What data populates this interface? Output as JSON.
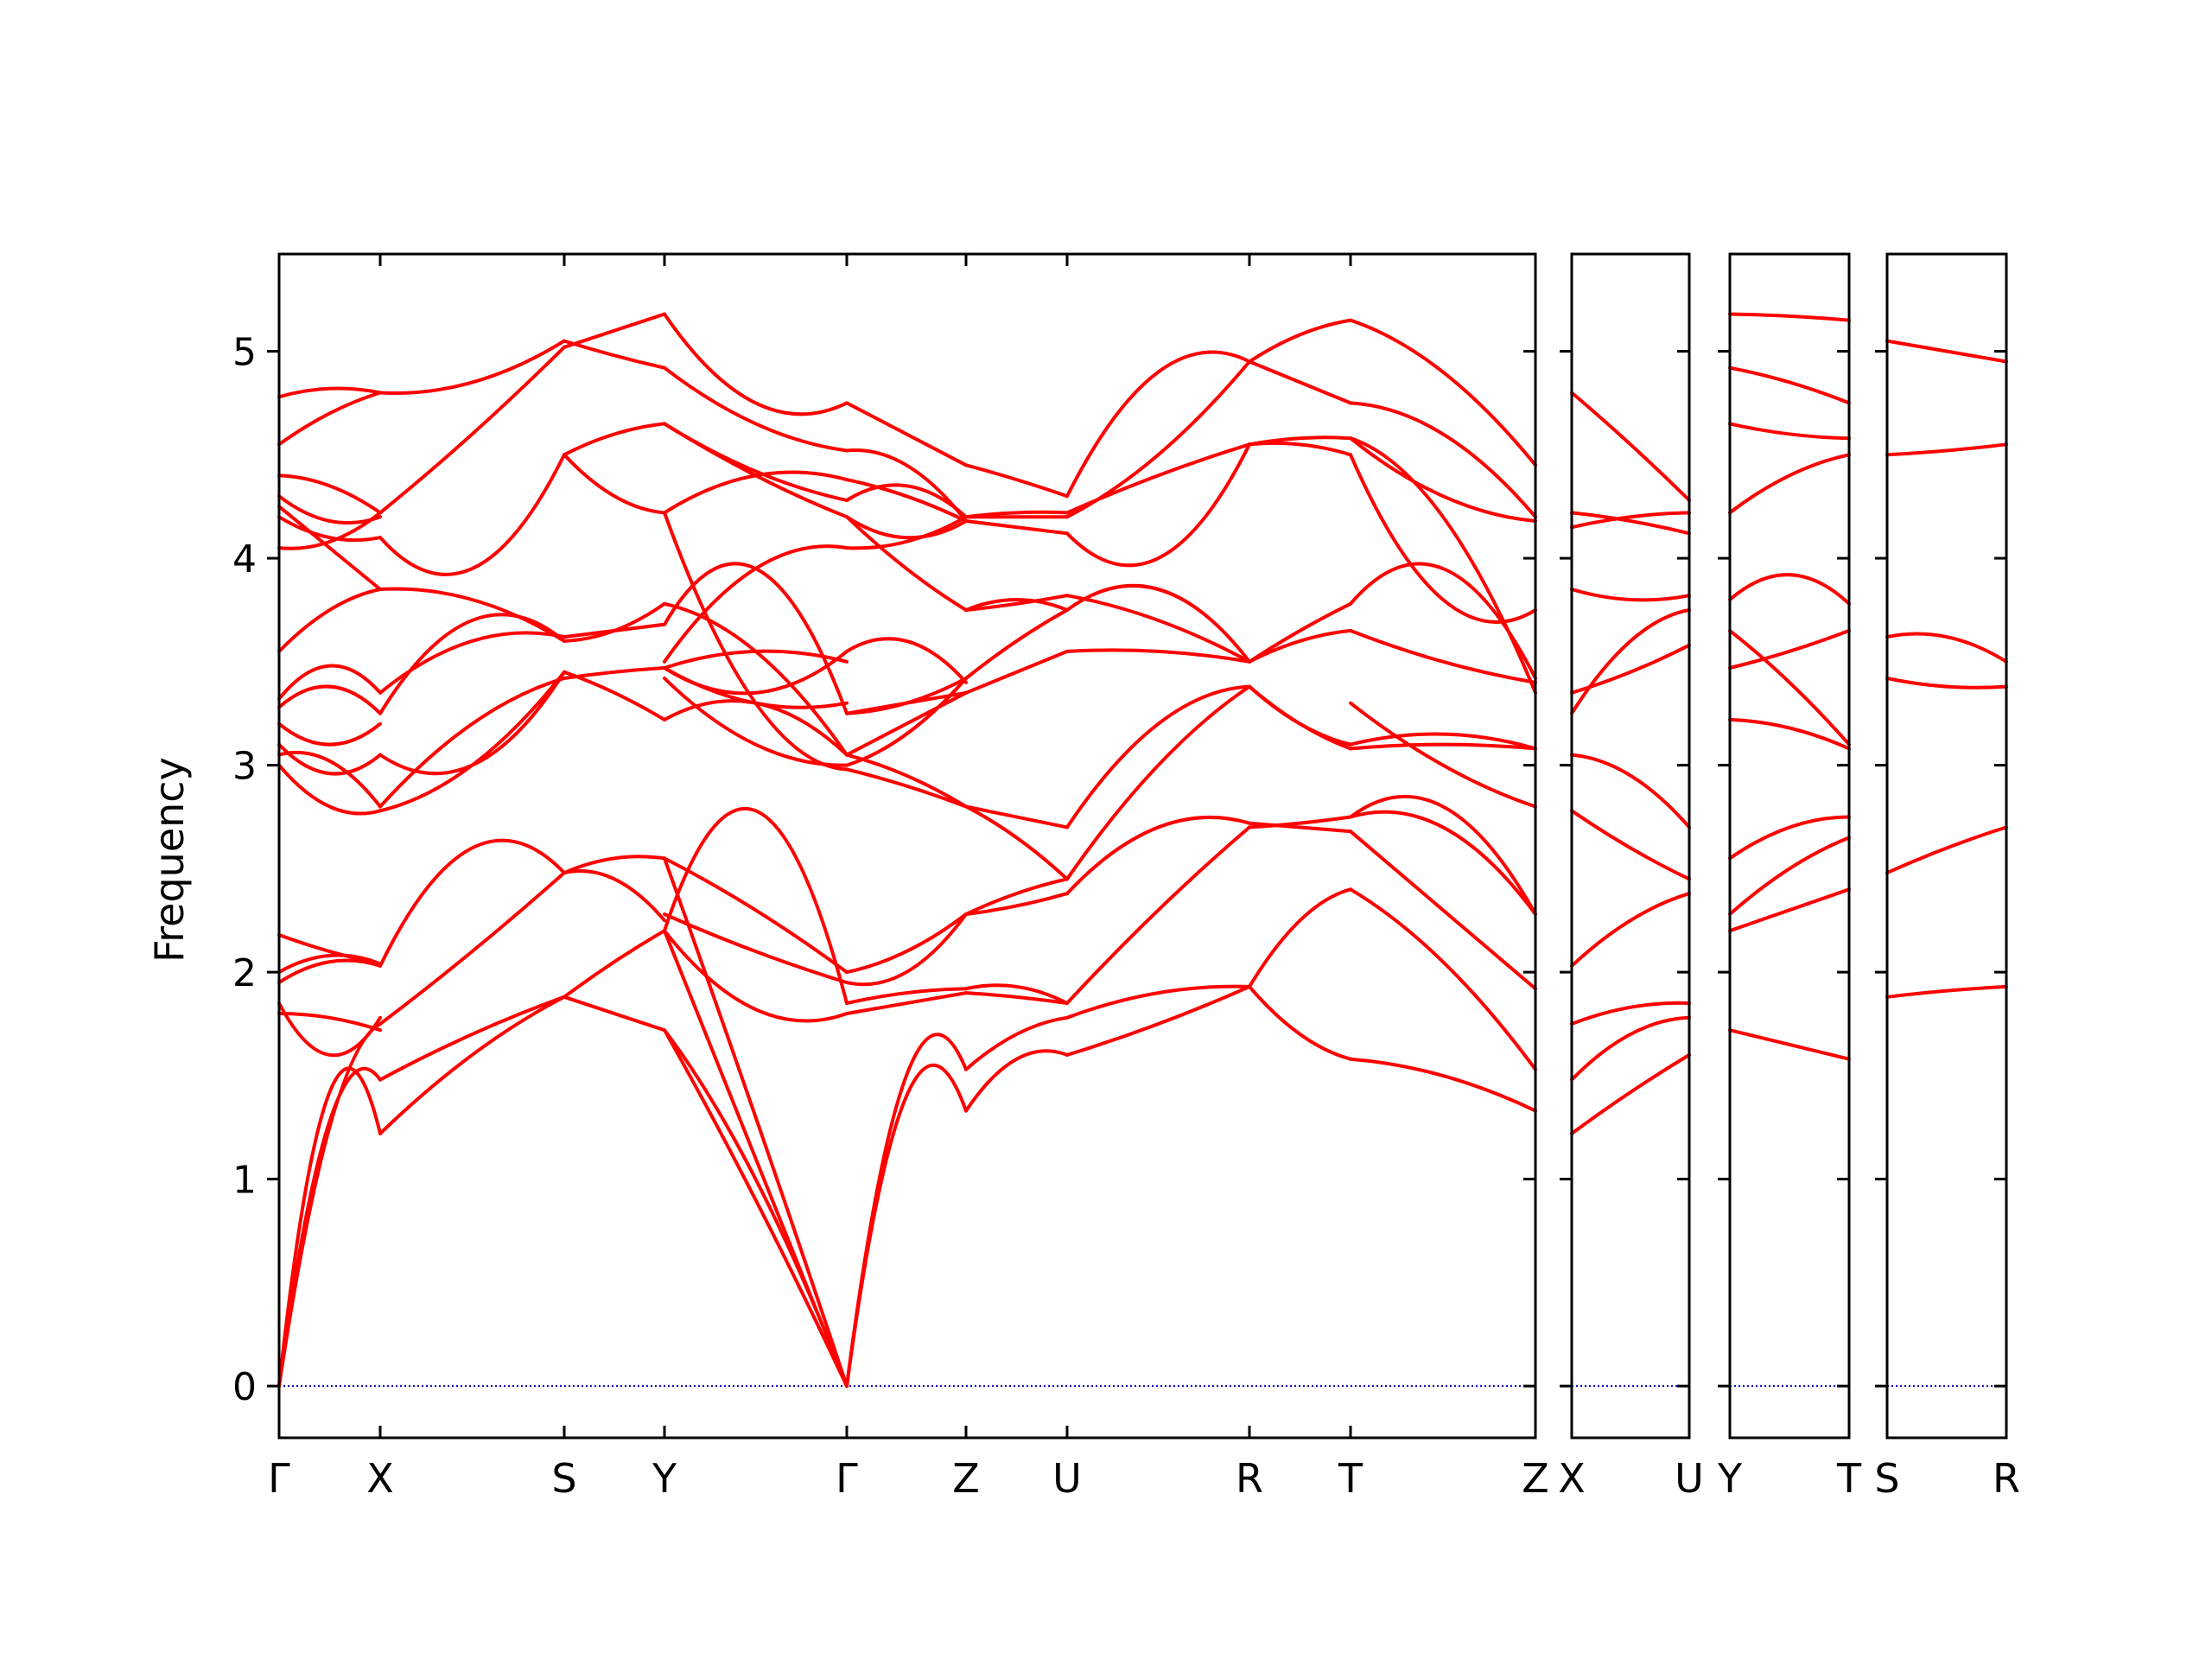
{
  "chart_data": {
    "type": "line",
    "ylabel": "Frequency",
    "ylim": [
      -0.25,
      5.47
    ],
    "yticks": [
      0,
      1,
      2,
      3,
      4,
      5
    ],
    "line_color": "#ff0000",
    "zero_line_color": "#0000cc",
    "panels": [
      {
        "id": "main",
        "labels": [
          "Γ",
          "X",
          "S",
          "Y",
          "Γ",
          "Z",
          "U",
          "R",
          "T",
          "Z"
        ],
        "segments": [
          {
            "from": "Γ",
            "to": "X",
            "bands": [
              [
                0,
                1.42,
                1.22
              ],
              [
                0,
                1.28,
                1.48
              ],
              [
                0,
                1.25,
                1.75
              ],
              [
                1.8,
                1.78,
                1.72
              ],
              [
                1.85,
                1.6,
                1.78
              ],
              [
                1.95,
                2.05,
                2.03
              ],
              [
                2.0,
                2.08,
                2.04
              ],
              [
                2.18,
                2.1,
                2.04
              ],
              [
                3.0,
                2.8,
                2.78
              ],
              [
                3.05,
                3.02,
                2.8
              ],
              [
                3.1,
                2.96,
                3.05
              ],
              [
                3.2,
                3.1,
                3.2
              ],
              [
                3.28,
                3.38,
                3.25
              ],
              [
                3.32,
                3.48,
                3.35
              ],
              [
                3.55,
                3.75,
                3.85
              ],
              [
                4.05,
                4.08,
                4.22
              ],
              [
                4.2,
                4.1,
                4.1
              ],
              [
                4.25,
                4.05,
                3.85
              ],
              [
                4.3,
                4.18,
                4.2
              ],
              [
                4.4,
                4.35,
                4.22
              ],
              [
                4.55,
                4.7,
                4.8
              ],
              [
                4.78,
                4.82,
                4.8
              ]
            ]
          },
          {
            "from": "X",
            "to": "S",
            "bands": [
              [
                1.22,
                1.6,
                1.88
              ],
              [
                1.48,
                1.7,
                1.88
              ],
              [
                1.75,
                2.1,
                2.48
              ],
              [
                2.03,
                2.6,
                2.48
              ],
              [
                2.78,
                3.0,
                3.45
              ],
              [
                2.8,
                3.2,
                3.42
              ],
              [
                3.05,
                3.0,
                3.45
              ],
              [
                3.25,
                3.7,
                3.6
              ],
              [
                3.35,
                3.6,
                3.62
              ],
              [
                3.85,
                3.8,
                3.6
              ],
              [
                4.1,
                3.95,
                4.5
              ],
              [
                4.22,
                4.6,
                5.02
              ],
              [
                4.8,
                4.85,
                5.05
              ]
            ]
          },
          {
            "from": "S",
            "to": "Y",
            "bands": [
              [
                1.88,
                1.8,
                1.72
              ],
              [
                1.88,
                2.05,
                2.2
              ],
              [
                2.48,
                2.45,
                2.25
              ],
              [
                2.48,
                2.55,
                2.55
              ],
              [
                3.42,
                3.45,
                3.47
              ],
              [
                3.45,
                3.35,
                3.22
              ],
              [
                3.6,
                3.65,
                3.78
              ],
              [
                3.62,
                3.65,
                3.68
              ],
              [
                4.5,
                4.3,
                4.22
              ],
              [
                4.5,
                4.6,
                4.65
              ],
              [
                5.02,
                5.1,
                5.18
              ],
              [
                5.05,
                4.98,
                4.92
              ]
            ]
          },
          {
            "from": "Y",
            "to": "Γ",
            "bands": [
              [
                1.72,
                1.0,
                0
              ],
              [
                1.72,
                0.9,
                0
              ],
              [
                2.2,
                1.1,
                0
              ],
              [
                2.55,
                1.3,
                0
              ],
              [
                2.2,
                2.78,
                1.85
              ],
              [
                2.2,
                1.82,
                1.8
              ],
              [
                2.28,
                2.1,
                1.95
              ],
              [
                2.55,
                2.3,
                2.0
              ],
              [
                3.22,
                3.3,
                3.05
              ],
              [
                3.47,
                3.55,
                3.5
              ],
              [
                3.68,
                3.95,
                3.25
              ],
              [
                3.78,
                3.55,
                3.05
              ],
              [
                3.47,
                3.3,
                3.3
              ],
              [
                3.42,
                3.1,
                3.0
              ],
              [
                4.22,
                3.3,
                2.98
              ],
              [
                4.22,
                4.4,
                4.38
              ],
              [
                4.65,
                4.4,
                4.2
              ],
              [
                4.65,
                4.42,
                4.28
              ],
              [
                5.18,
                4.75,
                4.75
              ],
              [
                4.92,
                4.65,
                4.52
              ],
              [
                3.5,
                3.95,
                4.05
              ],
              [
                3.47,
                3.35,
                3.55
              ]
            ]
          },
          {
            "from": "Γ",
            "to": "Z",
            "bands": [
              [
                0,
                1.5,
                1.53
              ],
              [
                0,
                1.4,
                1.33
              ],
              [
                1.85,
                1.9,
                1.92
              ],
              [
                1.8,
                1.85,
                1.9
              ],
              [
                2.0,
                2.1,
                2.28
              ],
              [
                1.95,
                2.0,
                2.28
              ],
              [
                3.05,
                2.95,
                2.8
              ],
              [
                2.98,
                2.9,
                2.8
              ],
              [
                3.25,
                3.3,
                3.42
              ],
              [
                3.55,
                3.6,
                3.4
              ],
              [
                3.25,
                3.3,
                3.35
              ],
              [
                3.05,
                3.2,
                3.35
              ],
              [
                3.0,
                3.15,
                3.42
              ],
              [
                4.05,
                4.08,
                4.2
              ],
              [
                4.28,
                4.35,
                4.2
              ],
              [
                4.38,
                4.3,
                4.18
              ],
              [
                4.52,
                4.45,
                4.18
              ],
              [
                4.75,
                4.6,
                4.45
              ],
              [
                4.2,
                3.95,
                3.75
              ],
              [
                4.2,
                4.1,
                4.18
              ]
            ]
          },
          {
            "from": "Z",
            "to": "U",
            "bands": [
              [
                1.33,
                1.58,
                1.6
              ],
              [
                1.53,
                1.7,
                1.78
              ],
              [
                1.9,
                1.88,
                1.85
              ],
              [
                1.92,
                1.93,
                1.85
              ],
              [
                2.28,
                2.32,
                2.38
              ],
              [
                2.28,
                2.38,
                2.45
              ],
              [
                2.8,
                2.65,
                2.45
              ],
              [
                2.8,
                2.75,
                2.7
              ],
              [
                3.35,
                3.45,
                3.55
              ],
              [
                3.42,
                3.6,
                3.75
              ],
              [
                3.75,
                3.78,
                3.82
              ],
              [
                3.75,
                3.8,
                3.75
              ],
              [
                4.18,
                4.15,
                4.12
              ],
              [
                4.2,
                4.22,
                4.22
              ],
              [
                4.45,
                4.38,
                4.3
              ],
              [
                4.2,
                4.2,
                4.2
              ]
            ]
          },
          {
            "from": "U",
            "to": "R",
            "bands": [
              [
                1.6,
                1.75,
                1.93
              ],
              [
                1.78,
                1.9,
                1.93
              ],
              [
                1.85,
                2.3,
                2.7
              ],
              [
                2.38,
                2.7,
                2.72
              ],
              [
                2.45,
                3.0,
                3.38
              ],
              [
                2.7,
                3.2,
                3.38
              ],
              [
                3.55,
                3.55,
                3.5
              ],
              [
                3.75,
                3.85,
                3.5
              ],
              [
                3.82,
                3.7,
                3.5
              ],
              [
                4.12,
                4.0,
                4.55
              ],
              [
                4.22,
                4.4,
                4.55
              ],
              [
                4.3,
                4.9,
                4.95
              ],
              [
                4.2,
                4.5,
                4.95
              ]
            ]
          },
          {
            "from": "R",
            "to": "T",
            "bands": [
              [
                1.93,
                1.7,
                1.58
              ],
              [
                1.93,
                2.25,
                2.4
              ],
              [
                2.7,
                2.72,
                2.75
              ],
              [
                2.72,
                2.7,
                2.68
              ],
              [
                3.38,
                3.2,
                3.1
              ],
              [
                3.38,
                3.2,
                3.08
              ],
              [
                3.5,
                3.6,
                3.65
              ],
              [
                3.5,
                3.65,
                3.78
              ],
              [
                4.55,
                4.55,
                4.5
              ],
              [
                4.55,
                4.58,
                4.58
              ],
              [
                4.95,
                5.08,
                5.15
              ],
              [
                4.95,
                4.85,
                4.75
              ]
            ]
          },
          {
            "from": "T",
            "to": "Z",
            "bands": [
              [
                1.58,
                1.5,
                1.33
              ],
              [
                2.4,
                2.05,
                1.53
              ],
              [
                2.75,
                2.7,
                2.28
              ],
              [
                2.68,
                2.3,
                1.92
              ],
              [
                2.75,
                2.8,
                2.28
              ],
              [
                3.1,
                3.15,
                3.08
              ],
              [
                3.08,
                3.1,
                3.08
              ],
              [
                3.65,
                3.5,
                3.4
              ],
              [
                3.78,
                3.95,
                3.42
              ],
              [
                4.5,
                3.8,
                3.75
              ],
              [
                4.58,
                4.2,
                3.35
              ],
              [
                5.15,
                4.9,
                4.45
              ],
              [
                4.75,
                4.6,
                4.2
              ],
              [
                4.58,
                4.3,
                4.18
              ],
              [
                3.3,
                3.0,
                2.8
              ]
            ]
          }
        ]
      },
      {
        "id": "panel-xu",
        "labels": [
          "X",
          "U"
        ],
        "segments": [
          {
            "from": "X",
            "to": "U",
            "bands": [
              [
                1.22,
                1.42,
                1.6
              ],
              [
                1.48,
                1.7,
                1.78
              ],
              [
                1.75,
                1.83,
                1.85
              ],
              [
                2.03,
                2.25,
                2.38
              ],
              [
                2.78,
                2.6,
                2.45
              ],
              [
                3.05,
                2.95,
                2.7
              ],
              [
                3.25,
                3.6,
                3.75
              ],
              [
                3.35,
                3.45,
                3.58
              ],
              [
                3.85,
                3.8,
                3.82
              ],
              [
                4.15,
                4.2,
                4.22
              ],
              [
                4.22,
                4.18,
                4.12
              ],
              [
                4.8,
                4.55,
                4.28
              ]
            ]
          }
        ]
      },
      {
        "id": "panel-yt",
        "labels": [
          "Y",
          "T"
        ],
        "segments": [
          {
            "from": "Y",
            "to": "T",
            "bands": [
              [
                1.72,
                1.65,
                1.58
              ],
              [
                2.2,
                2.3,
                2.4
              ],
              [
                2.28,
                2.5,
                2.65
              ],
              [
                2.55,
                2.7,
                2.75
              ],
              [
                3.22,
                3.18,
                3.08
              ],
              [
                3.65,
                3.4,
                3.1
              ],
              [
                3.47,
                3.55,
                3.65
              ],
              [
                3.8,
                3.92,
                3.78
              ],
              [
                4.22,
                4.4,
                4.5
              ],
              [
                4.65,
                4.6,
                4.58
              ],
              [
                4.92,
                4.85,
                4.75
              ],
              [
                5.18,
                5.17,
                5.15
              ]
            ]
          }
        ]
      },
      {
        "id": "panel-sr",
        "labels": [
          "S",
          "R"
        ],
        "segments": [
          {
            "from": "S",
            "to": "R",
            "bands": [
              [
                1.88,
                1.91,
                1.93
              ],
              [
                2.48,
                2.6,
                2.7
              ],
              [
                3.42,
                3.38,
                3.38
              ],
              [
                3.62,
                3.62,
                3.5
              ],
              [
                4.5,
                4.52,
                4.55
              ],
              [
                5.05,
                5.0,
                4.95
              ]
            ]
          }
        ]
      }
    ]
  }
}
